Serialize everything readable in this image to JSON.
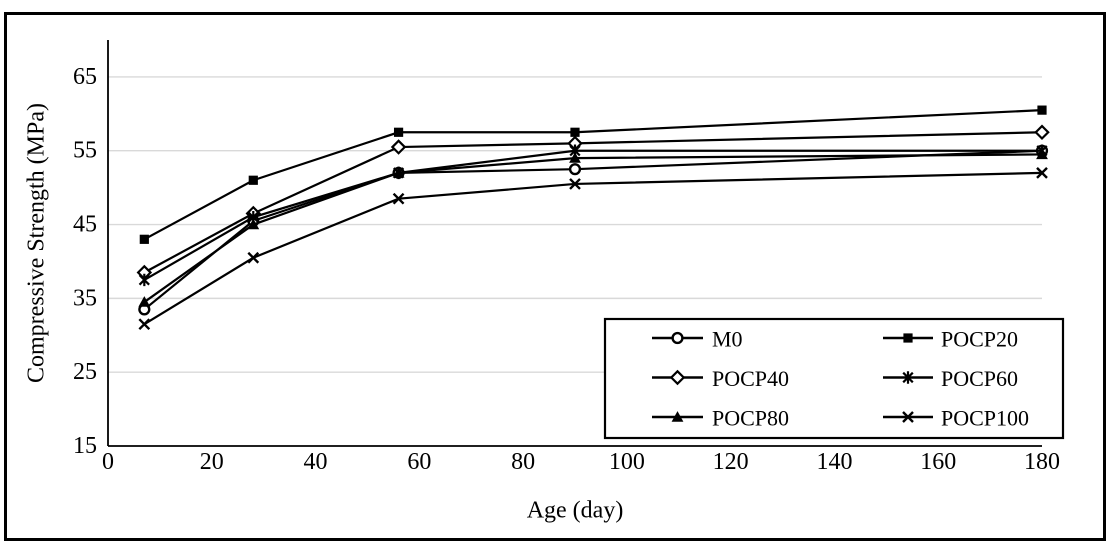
{
  "chart_data": {
    "type": "line",
    "title": "",
    "xlabel": "Age (day)",
    "ylabel": "Compressive Strength (MPa)",
    "x": [
      7,
      28,
      56,
      90,
      180
    ],
    "xlim": [
      0,
      180
    ],
    "ylim": [
      15,
      70
    ],
    "x_ticks": [
      0,
      20,
      40,
      60,
      80,
      100,
      120,
      140,
      160,
      180
    ],
    "y_ticks": [
      15,
      25,
      35,
      45,
      55,
      65
    ],
    "grid": "horizontal-light-gray",
    "legend_position": "inside-bottom-right-box",
    "series": [
      {
        "name": "M0",
        "marker": "circle-open",
        "values": [
          33.5,
          45.5,
          52,
          52.5,
          55
        ]
      },
      {
        "name": "POCP20",
        "marker": "square-filled",
        "values": [
          43,
          51,
          57.5,
          57.5,
          60.5
        ]
      },
      {
        "name": "POCP40",
        "marker": "diamond-open",
        "values": [
          38.5,
          46.5,
          55.5,
          56,
          57.5
        ]
      },
      {
        "name": "POCP60",
        "marker": "asterisk",
        "values": [
          37.5,
          46,
          52,
          55,
          55
        ]
      },
      {
        "name": "POCP80",
        "marker": "triangle-filled",
        "values": [
          34.5,
          45,
          52,
          54,
          54.5
        ]
      },
      {
        "name": "POCP100",
        "marker": "x",
        "values": [
          31.5,
          40.5,
          48.5,
          50.5,
          52
        ]
      }
    ],
    "colors": {
      "line": "#000000",
      "marker_fill_open": "#ffffff",
      "grid": "#d9d9d9",
      "background": "#ffffff",
      "frame": "#000000",
      "text": "#000000"
    }
  }
}
